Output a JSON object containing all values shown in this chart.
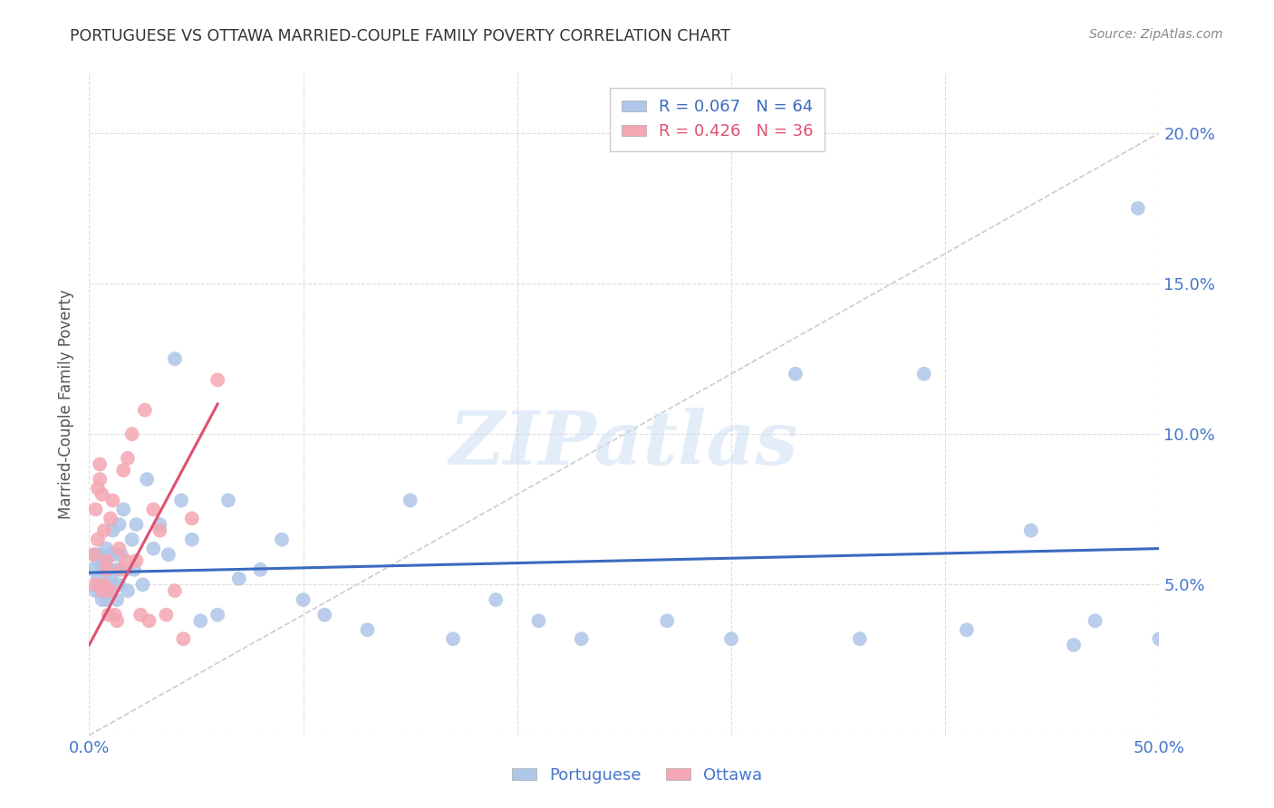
{
  "title": "PORTUGUESE VS OTTAWA MARRIED-COUPLE FAMILY POVERTY CORRELATION CHART",
  "source": "Source: ZipAtlas.com",
  "ylabel": "Married-Couple Family Poverty",
  "xlim": [
    0.0,
    0.5
  ],
  "ylim": [
    0.0,
    0.22
  ],
  "xticks": [
    0.0,
    0.1,
    0.2,
    0.3,
    0.4,
    0.5
  ],
  "xticklabels": [
    "0.0%",
    "",
    "",
    "",
    "",
    "50.0%"
  ],
  "yticks_right": [
    0.05,
    0.1,
    0.15,
    0.2
  ],
  "yticklabels_right": [
    "5.0%",
    "10.0%",
    "15.0%",
    "20.0%"
  ],
  "portuguese_R": 0.067,
  "portuguese_N": 64,
  "ottawa_R": 0.426,
  "ottawa_N": 36,
  "portuguese_color": "#aec6e8",
  "ottawa_color": "#f4a7b2",
  "portuguese_line_color": "#3a6abf",
  "ottawa_line_color": "#e05070",
  "diagonal_color": "#cccccc",
  "watermark": "ZIPatlas",
  "background_color": "#ffffff",
  "grid_color": "#dddddd",
  "title_color": "#333333",
  "axis_label_color": "#555555",
  "tick_color": "#4477cc",
  "portuguese_x": [
    0.002,
    0.003,
    0.003,
    0.004,
    0.004,
    0.005,
    0.005,
    0.006,
    0.006,
    0.007,
    0.007,
    0.008,
    0.008,
    0.009,
    0.009,
    0.01,
    0.01,
    0.011,
    0.011,
    0.012,
    0.013,
    0.013,
    0.014,
    0.014,
    0.015,
    0.016,
    0.017,
    0.018,
    0.02,
    0.021,
    0.022,
    0.025,
    0.027,
    0.03,
    0.033,
    0.037,
    0.04,
    0.043,
    0.048,
    0.052,
    0.06,
    0.065,
    0.07,
    0.08,
    0.09,
    0.1,
    0.11,
    0.13,
    0.15,
    0.17,
    0.19,
    0.21,
    0.23,
    0.27,
    0.3,
    0.33,
    0.36,
    0.39,
    0.41,
    0.44,
    0.46,
    0.47,
    0.49,
    0.5
  ],
  "portuguese_y": [
    0.055,
    0.048,
    0.06,
    0.052,
    0.058,
    0.048,
    0.06,
    0.055,
    0.045,
    0.058,
    0.05,
    0.045,
    0.062,
    0.055,
    0.048,
    0.06,
    0.052,
    0.068,
    0.05,
    0.06,
    0.055,
    0.045,
    0.07,
    0.05,
    0.06,
    0.075,
    0.055,
    0.048,
    0.065,
    0.055,
    0.07,
    0.05,
    0.085,
    0.062,
    0.07,
    0.06,
    0.125,
    0.078,
    0.065,
    0.038,
    0.04,
    0.078,
    0.052,
    0.055,
    0.065,
    0.045,
    0.04,
    0.035,
    0.078,
    0.032,
    0.045,
    0.038,
    0.032,
    0.038,
    0.032,
    0.12,
    0.032,
    0.12,
    0.035,
    0.068,
    0.03,
    0.038,
    0.175,
    0.032
  ],
  "ottawa_x": [
    0.002,
    0.003,
    0.003,
    0.004,
    0.004,
    0.005,
    0.005,
    0.006,
    0.006,
    0.007,
    0.007,
    0.008,
    0.008,
    0.009,
    0.01,
    0.01,
    0.011,
    0.012,
    0.013,
    0.014,
    0.015,
    0.016,
    0.017,
    0.018,
    0.02,
    0.022,
    0.024,
    0.026,
    0.028,
    0.03,
    0.033,
    0.036,
    0.04,
    0.044,
    0.048,
    0.06
  ],
  "ottawa_y": [
    0.06,
    0.05,
    0.075,
    0.082,
    0.065,
    0.085,
    0.09,
    0.08,
    0.048,
    0.068,
    0.05,
    0.055,
    0.058,
    0.04,
    0.072,
    0.048,
    0.078,
    0.04,
    0.038,
    0.062,
    0.055,
    0.088,
    0.058,
    0.092,
    0.1,
    0.058,
    0.04,
    0.108,
    0.038,
    0.075,
    0.068,
    0.04,
    0.048,
    0.032,
    0.072,
    0.118
  ],
  "portuguese_line_x": [
    0.0,
    0.5
  ],
  "portuguese_line_y": [
    0.054,
    0.062
  ],
  "ottawa_line_x": [
    0.0,
    0.06
  ],
  "ottawa_line_y": [
    0.03,
    0.11
  ]
}
